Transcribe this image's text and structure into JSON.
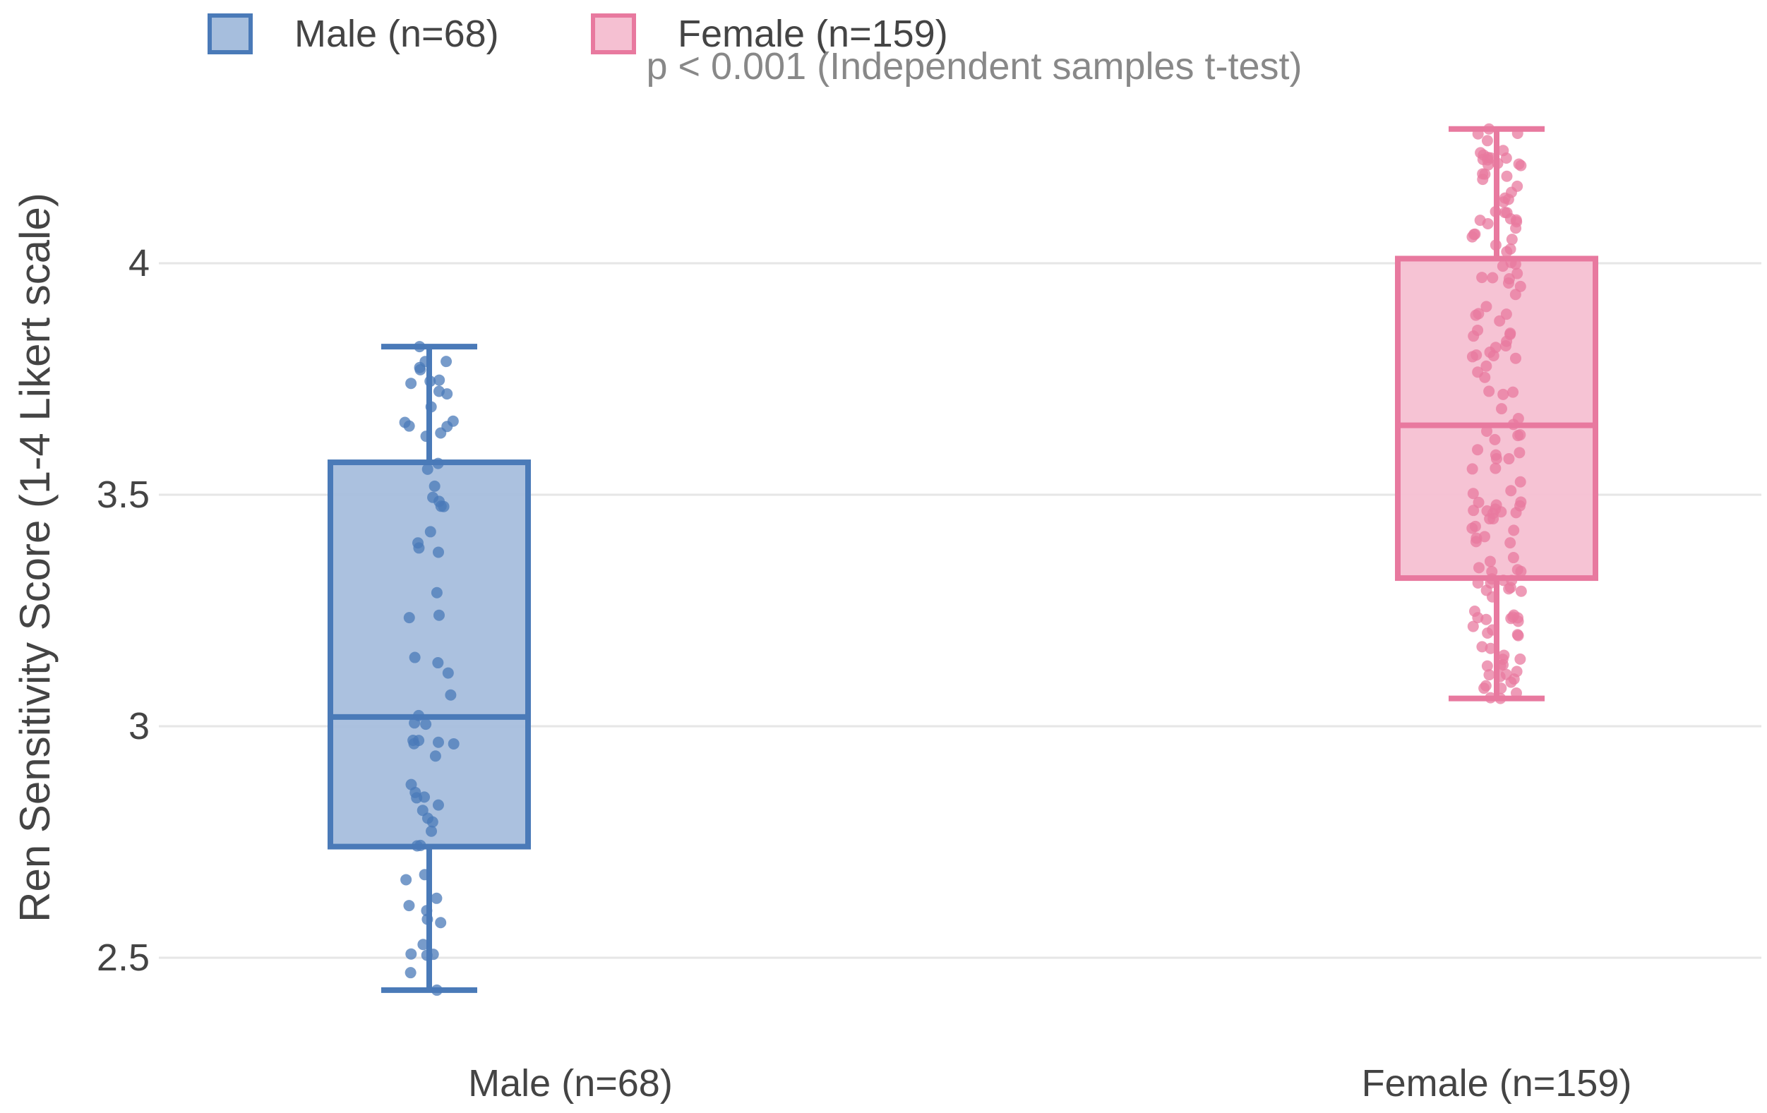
{
  "chart_data": {
    "type": "box",
    "title": "",
    "subtitle": "p < 0.001 (Independent samples t-test)",
    "xlabel": "",
    "ylabel": "Ren Sensitivity Score (1-4 Likert scale)",
    "ylim": [
      2.34,
      4.35
    ],
    "yticks": [
      2.5,
      3,
      3.5,
      4
    ],
    "ytick_labels": [
      "2.5",
      "3",
      "3.5",
      "4"
    ],
    "grid": true,
    "legend_position": "top-left, horizontal",
    "categories": [
      "Male (n=68)",
      "Female (n=159)"
    ],
    "series": [
      {
        "name": "Male (n=68)",
        "color": "#4a7ab8",
        "fill": "#a6bedd",
        "n": 68,
        "min": 2.43,
        "q1": 2.74,
        "median": 3.02,
        "q3": 3.57,
        "max": 3.82
      },
      {
        "name": "Female (n=159)",
        "color": "#e8799f",
        "fill": "#f5c0d2",
        "n": 159,
        "min": 3.06,
        "q1": 3.32,
        "median": 3.65,
        "q3": 4.01,
        "max": 4.29
      }
    ]
  }
}
